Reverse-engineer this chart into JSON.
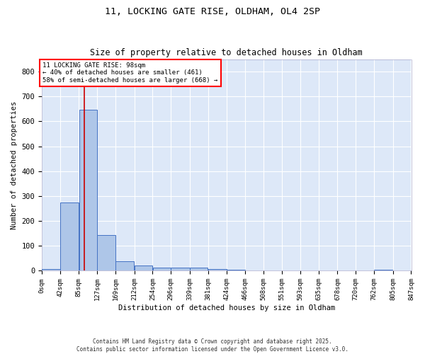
{
  "title1": "11, LOCKING GATE RISE, OLDHAM, OL4 2SP",
  "title2": "Size of property relative to detached houses in Oldham",
  "xlabel": "Distribution of detached houses by size in Oldham",
  "ylabel": "Number of detached properties",
  "annotation_title": "11 LOCKING GATE RISE: 98sqm",
  "annotation_line1": "← 40% of detached houses are smaller (461)",
  "annotation_line2": "58% of semi-detached houses are larger (668) →",
  "property_size": 98,
  "bin_edges": [
    0,
    42,
    85,
    127,
    169,
    212,
    254,
    296,
    339,
    381,
    424,
    466,
    508,
    551,
    593,
    635,
    678,
    720,
    762,
    805,
    847
  ],
  "bin_counts": [
    8,
    275,
    648,
    143,
    37,
    20,
    13,
    12,
    13,
    8,
    5,
    0,
    0,
    0,
    0,
    1,
    0,
    0,
    5,
    0
  ],
  "bar_color": "#aec6e8",
  "bar_edge_color": "#4472c4",
  "vline_color": "#cc0000",
  "vline_x": 98,
  "bg_color": "#dde8f8",
  "grid_color": "#ffffff",
  "footer1": "Contains HM Land Registry data © Crown copyright and database right 2025.",
  "footer2": "Contains public sector information licensed under the Open Government Licence v3.0.",
  "ylim": [
    0,
    850
  ],
  "yticks": [
    0,
    100,
    200,
    300,
    400,
    500,
    600,
    700,
    800
  ]
}
